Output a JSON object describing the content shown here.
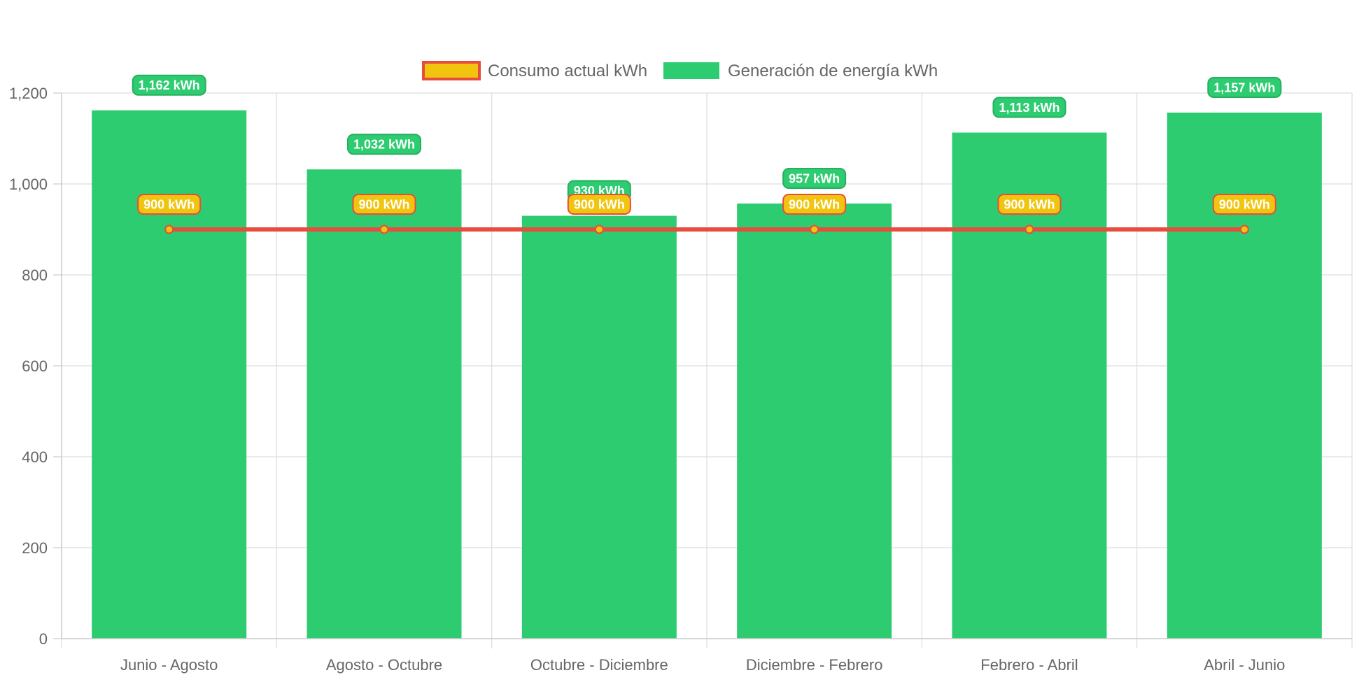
{
  "chart_data": {
    "type": "bar",
    "categories": [
      "Junio - Agosto",
      "Agosto - Octubre",
      "Octubre - Diciembre",
      "Diciembre - Febrero",
      "Febrero - Abril",
      "Abril - Junio"
    ],
    "series": [
      {
        "name": "Consumo actual kWh",
        "type": "line",
        "values": [
          900,
          900,
          900,
          900,
          900,
          900
        ],
        "labels": [
          "900 kWh",
          "900 kWh",
          "900 kWh",
          "900 kWh",
          "900 kWh",
          "900 kWh"
        ],
        "color": "#e74c3c",
        "fill_color": "#f1c40f"
      },
      {
        "name": "Generación de energía kWh",
        "type": "bar",
        "values": [
          1162,
          1032,
          930,
          957,
          1113,
          1157
        ],
        "labels": [
          "1,162 kWh",
          "1,032 kWh",
          "930 kWh",
          "957 kWh",
          "1,113 kWh",
          "1,157 kWh"
        ],
        "color": "#2ecc71",
        "label_border_color": "#27ae60"
      }
    ],
    "title": "",
    "xlabel": "",
    "ylabel": "",
    "ylim": [
      0,
      1200
    ],
    "yticks": [
      0,
      200,
      400,
      600,
      800,
      1000,
      1200
    ],
    "ytick_labels": [
      "0",
      "200",
      "400",
      "600",
      "800",
      "1,000",
      "1,200"
    ],
    "grid": true,
    "legend_position": "top"
  }
}
